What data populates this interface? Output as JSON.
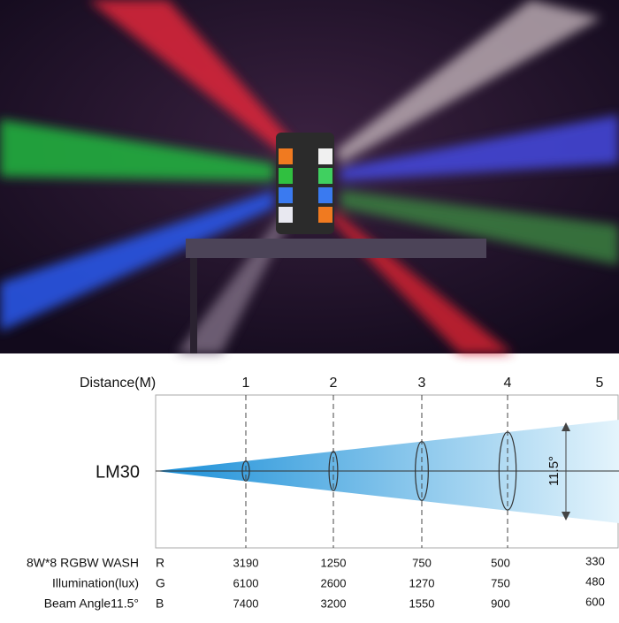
{
  "photo": {
    "product": "RGBW spider beam light"
  },
  "diagram": {
    "distance_header": "Distance(M)",
    "distances": [
      "1",
      "2",
      "3",
      "4",
      "5"
    ],
    "model": "LM30",
    "beam_angle": "11.5°"
  },
  "specs": {
    "labels": [
      "8W*8 RGBW WASH",
      "Illumination(lux)",
      "Beam Angle11.5°"
    ],
    "channels": [
      "R",
      "G",
      "B"
    ],
    "rows": [
      [
        3190,
        1250,
        750,
        500,
        330
      ],
      [
        6100,
        2600,
        1270,
        750,
        480
      ],
      [
        7400,
        3200,
        1550,
        900,
        600
      ]
    ]
  }
}
